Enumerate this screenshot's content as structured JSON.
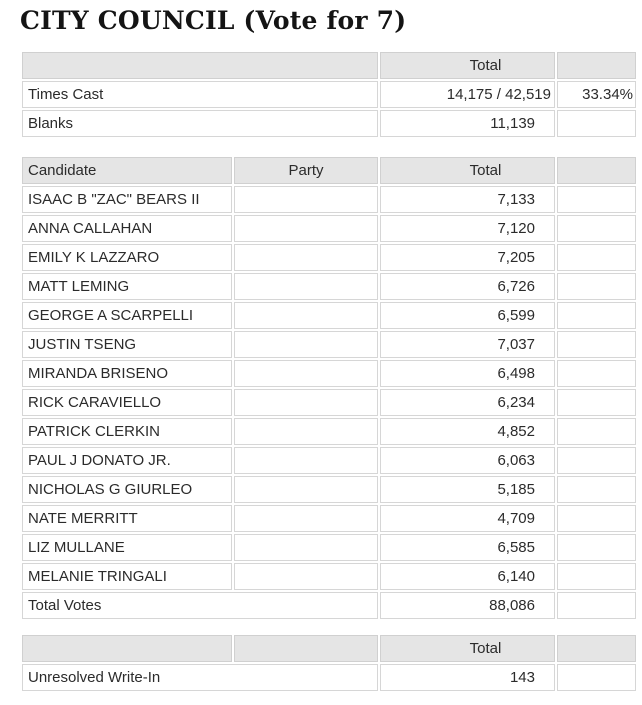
{
  "contest": {
    "title": "CITY COUNCIL (Vote for 7)"
  },
  "summary": {
    "header_total": "Total",
    "rows": [
      {
        "label": "Times Cast",
        "value": "14,175 / 42,519",
        "percent": "33.34%"
      },
      {
        "label": "Blanks",
        "value": "11,139",
        "percent": ""
      }
    ]
  },
  "results": {
    "headers": {
      "candidate": "Candidate",
      "party": "Party",
      "total": "Total"
    },
    "rows": [
      {
        "candidate": "ISAAC B \"ZAC\" BEARS II",
        "party": "",
        "total": "7,133"
      },
      {
        "candidate": "ANNA CALLAHAN",
        "party": "",
        "total": "7,120"
      },
      {
        "candidate": "EMILY K LAZZARO",
        "party": "",
        "total": "7,205"
      },
      {
        "candidate": "MATT LEMING",
        "party": "",
        "total": "6,726"
      },
      {
        "candidate": "GEORGE A SCARPELLI",
        "party": "",
        "total": "6,599"
      },
      {
        "candidate": "JUSTIN TSENG",
        "party": "",
        "total": "7,037"
      },
      {
        "candidate": "MIRANDA BRISENO",
        "party": "",
        "total": "6,498"
      },
      {
        "candidate": "RICK CARAVIELLO",
        "party": "",
        "total": "6,234"
      },
      {
        "candidate": "PATRICK CLERKIN",
        "party": "",
        "total": "4,852"
      },
      {
        "candidate": "PAUL J DONATO JR.",
        "party": "",
        "total": "6,063"
      },
      {
        "candidate": "NICHOLAS G GIURLEO",
        "party": "",
        "total": "5,185"
      },
      {
        "candidate": "NATE MERRITT",
        "party": "",
        "total": "4,709"
      },
      {
        "candidate": "LIZ MULLANE",
        "party": "",
        "total": "6,585"
      },
      {
        "candidate": "MELANIE TRINGALI",
        "party": "",
        "total": "6,140"
      }
    ],
    "total_row": {
      "label": "Total Votes",
      "value": "88,086"
    }
  },
  "writein": {
    "header_total": "Total",
    "rows": [
      {
        "label": "Unresolved Write-In",
        "value": "143"
      }
    ]
  },
  "colors": {
    "header_bg": "#e5e5e5",
    "row_border": "#d6d6d6",
    "text": "#2b2b2b"
  }
}
